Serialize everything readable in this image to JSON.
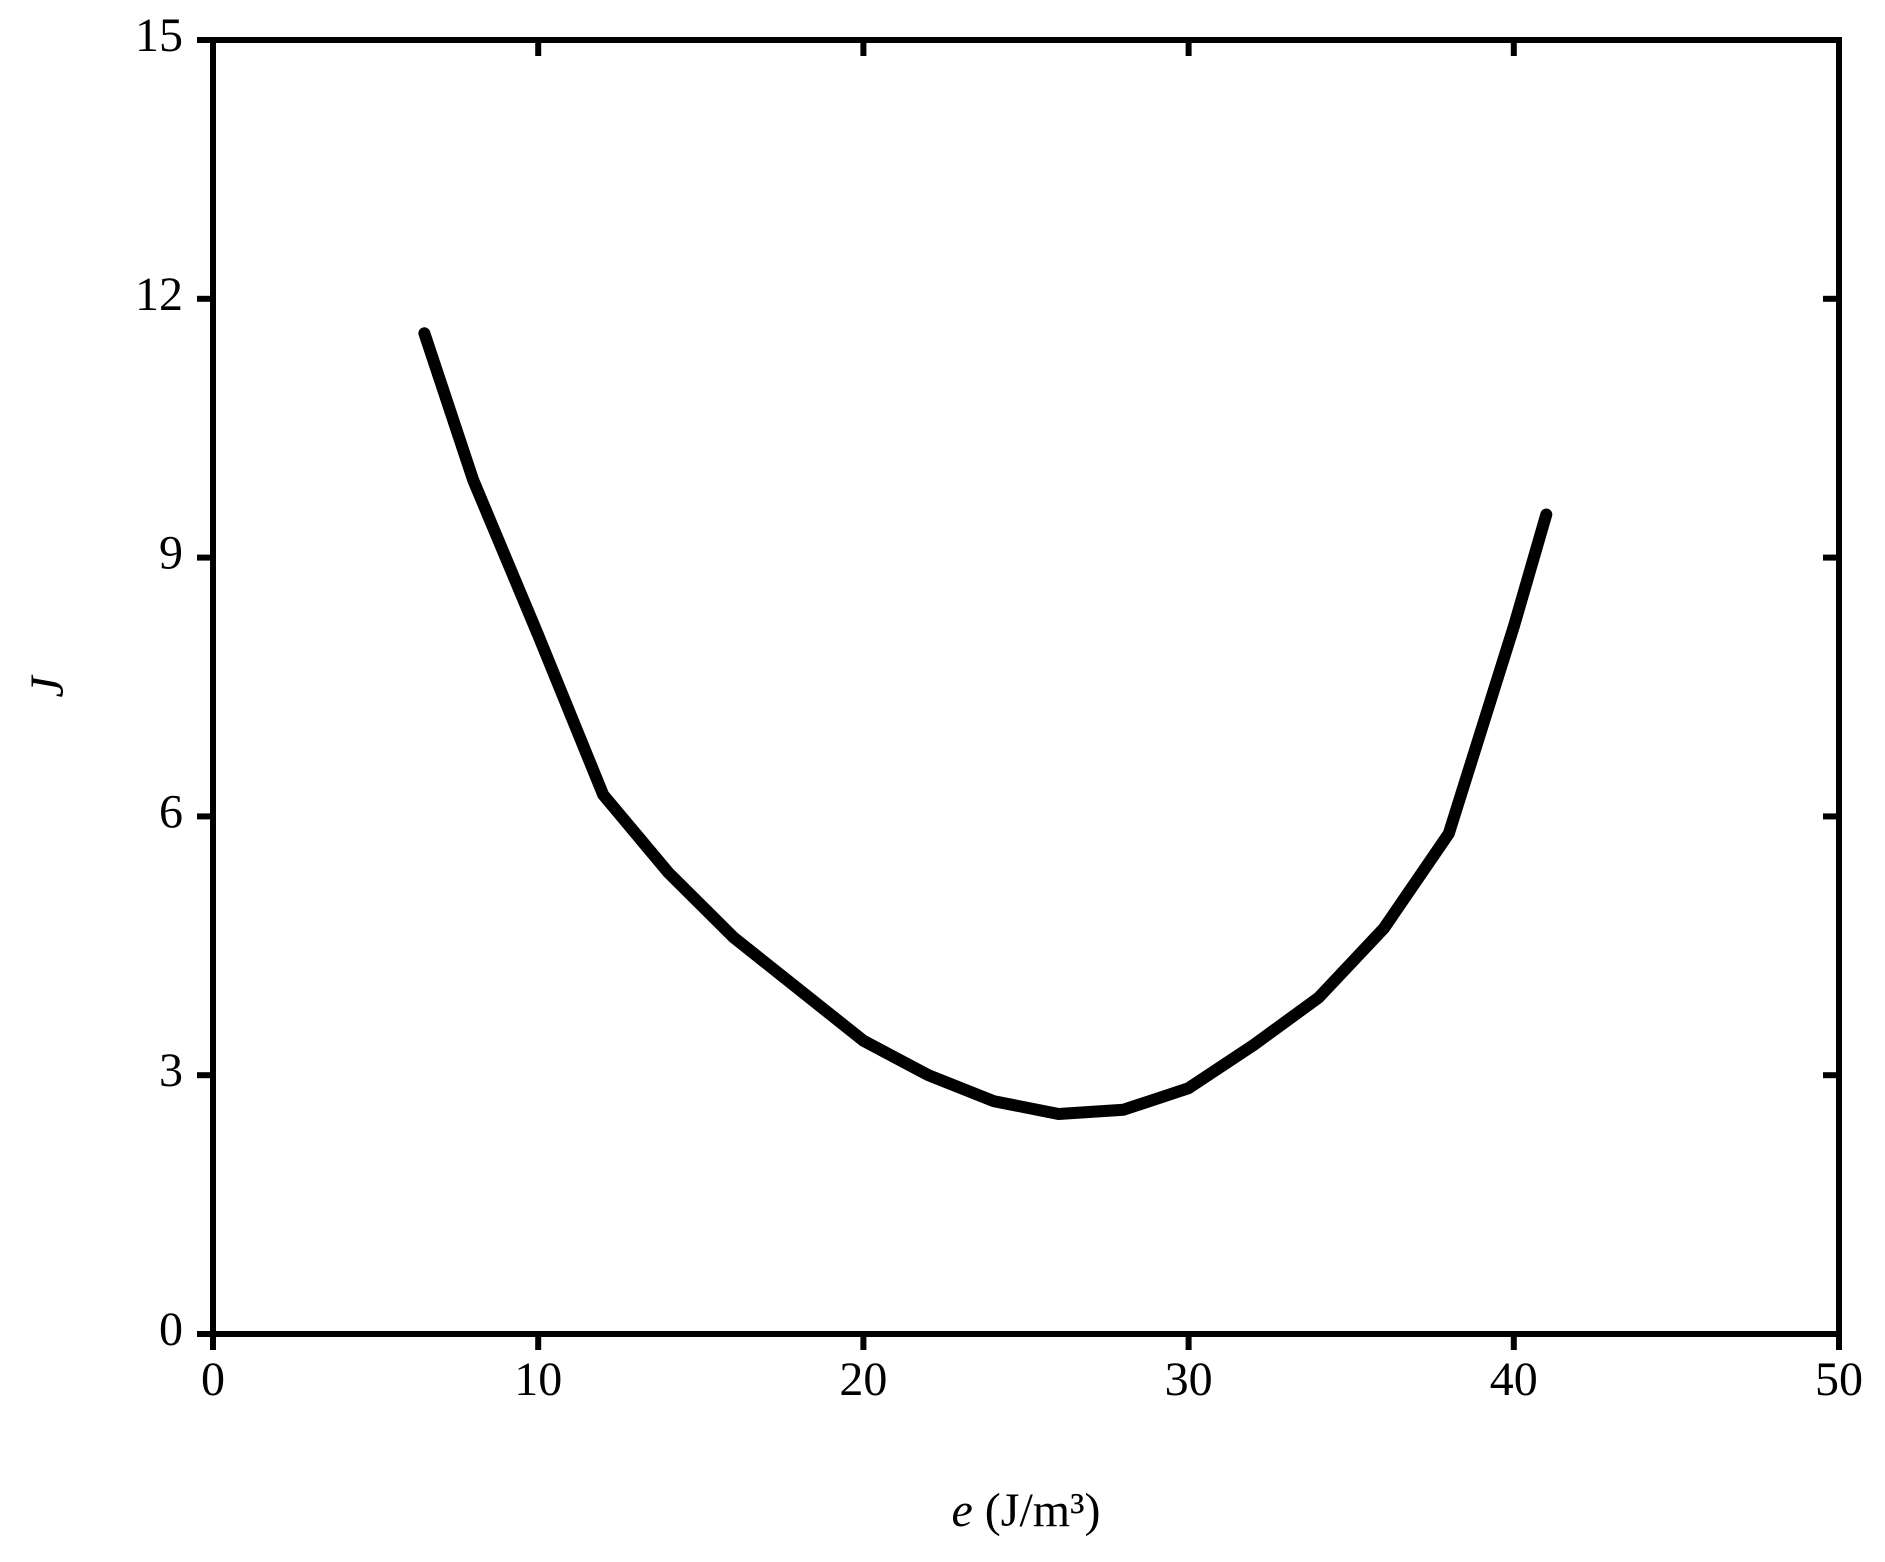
{
  "chart_data": {
    "type": "line",
    "x": [
      6.5,
      8,
      10,
      12,
      14,
      16,
      18,
      20,
      22,
      24,
      26,
      28,
      30,
      32,
      34,
      36,
      38,
      40,
      41
    ],
    "series": [
      {
        "color": "#000000",
        "values": [
          11.6,
          9.9,
          8.1,
          6.25,
          5.35,
          4.6,
          4.0,
          3.4,
          3.0,
          2.7,
          2.55,
          2.6,
          2.85,
          3.35,
          3.9,
          4.7,
          5.8,
          8.2,
          9.5
        ]
      }
    ],
    "xlim": [
      0,
      50
    ],
    "xticks": [
      0,
      10,
      20,
      30,
      40,
      50
    ],
    "ylim": [
      0,
      15
    ],
    "yticks": [
      0,
      3,
      6,
      9,
      12,
      15
    ],
    "xlabel": {
      "symbol": "e",
      "unit": "(J/m³)"
    },
    "ylabel": "J",
    "grid": false
  }
}
